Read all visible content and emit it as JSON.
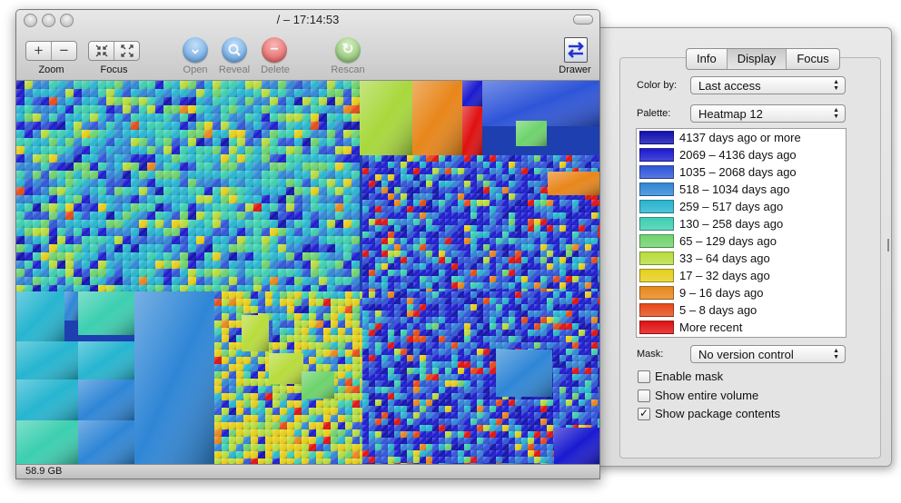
{
  "window": {
    "title": "/ – 17:14:53",
    "toolbar": {
      "zoom_label": "Zoom",
      "focus_label": "Focus",
      "open_label": "Open",
      "reveal_label": "Reveal",
      "delete_label": "Delete",
      "rescan_label": "Rescan",
      "drawer_label": "Drawer",
      "zoom_in_symbol": "+",
      "zoom_out_symbol": "−"
    },
    "status": {
      "size": "58.9 GB"
    }
  },
  "drawer": {
    "tabs": [
      {
        "label": "Info"
      },
      {
        "label": "Display"
      },
      {
        "label": "Focus"
      }
    ],
    "active_tab": "Display",
    "color_by": {
      "label": "Color by:",
      "value": "Last access"
    },
    "palette": {
      "label": "Palette:",
      "value": "Heatmap 12"
    },
    "legend": [
      {
        "label": "4137 days ago or more",
        "color": "#1010b0"
      },
      {
        "label": "2069 – 4136 days ago",
        "color": "#1a1ad0"
      },
      {
        "label": "1035 – 2068 days ago",
        "color": "#2e55d8"
      },
      {
        "label": "518 – 1034 days ago",
        "color": "#2f86d6"
      },
      {
        "label": "259 – 517 days ago",
        "color": "#26b5d0"
      },
      {
        "label": "130 – 258 days ago",
        "color": "#3ccfb0"
      },
      {
        "label": "65 – 129 days ago",
        "color": "#6ed36c"
      },
      {
        "label": "33 – 64 days ago",
        "color": "#b8dc3c"
      },
      {
        "label": "17 – 32 days ago",
        "color": "#e6cf1a"
      },
      {
        "label": "9 – 16 days ago",
        "color": "#e8861a"
      },
      {
        "label": "5 – 8 days ago",
        "color": "#e64a16"
      },
      {
        "label": "More recent",
        "color": "#e01010"
      }
    ],
    "mask": {
      "label": "Mask:",
      "value": "No version control"
    },
    "checkboxes": [
      {
        "label": "Enable mask",
        "checked": false
      },
      {
        "label": "Show entire volume",
        "checked": false
      },
      {
        "label": "Show package contents",
        "checked": true
      }
    ],
    "checkmark": "✓"
  }
}
